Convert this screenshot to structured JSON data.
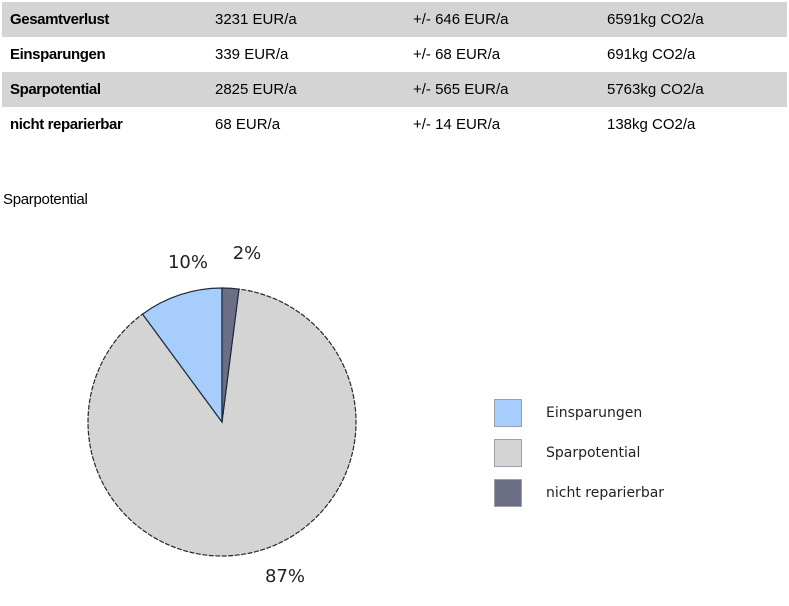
{
  "table": {
    "rows": [
      {
        "label": "Gesamtverlust",
        "cost": "3231 EUR/a",
        "range": "+/- 646 EUR/a",
        "co2": "6591kg CO2/a",
        "shaded": true
      },
      {
        "label": "Einsparungen",
        "cost": "339 EUR/a",
        "range": "+/- 68 EUR/a",
        "co2": "691kg CO2/a",
        "shaded": false
      },
      {
        "label": "Sparpotential",
        "cost": "2825 EUR/a",
        "range": "+/- 565 EUR/a",
        "co2": "5763kg CO2/a",
        "shaded": true
      },
      {
        "label": "nicht reparierbar",
        "cost": "68 EUR/a",
        "range": "+/- 14 EUR/a",
        "co2": "138kg CO2/a",
        "shaded": false
      }
    ]
  },
  "section_title": "Sparpotential",
  "chart_data": {
    "type": "pie",
    "title": "",
    "categories": [
      "Einsparungen",
      "Sparpotential",
      "nicht reparierbar"
    ],
    "values": [
      10,
      87,
      2
    ],
    "labels": [
      "10%",
      "87%",
      "2%"
    ],
    "colors": [
      "#a6cdfb",
      "#d4d4d4",
      "#6b6e84"
    ],
    "legend_position": "right"
  }
}
